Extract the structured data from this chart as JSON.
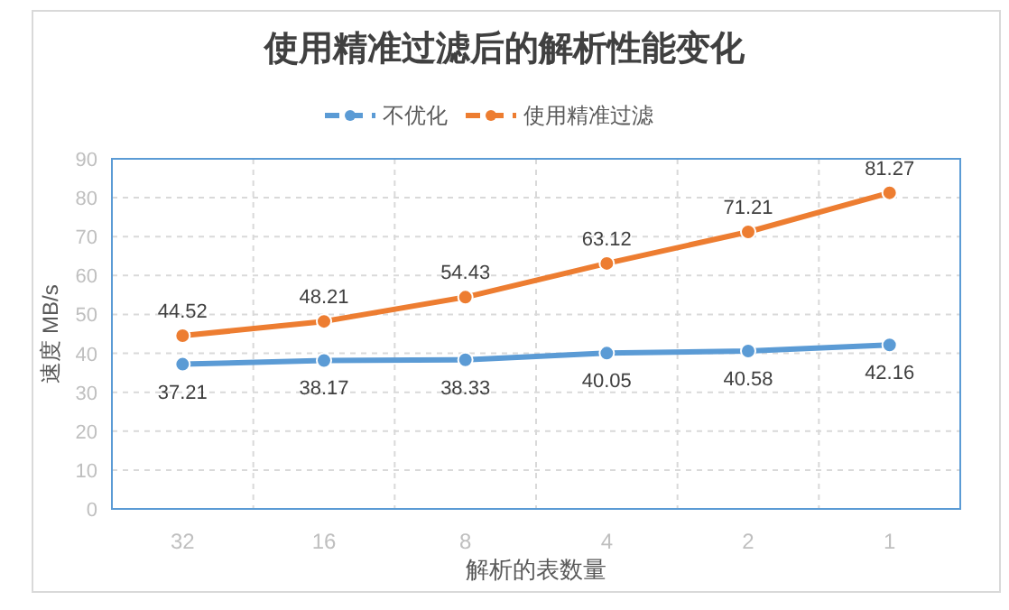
{
  "chart_data": {
    "type": "line",
    "title": "使用精准过滤后的解析性能变化",
    "xlabel": "解析的表数量",
    "ylabel": "速度 MB/s",
    "categories": [
      "32",
      "16",
      "8",
      "4",
      "2",
      "1"
    ],
    "series": [
      {
        "name": "不优化",
        "color": "#5b9bd5",
        "values": [
          37.21,
          38.17,
          38.33,
          40.05,
          40.58,
          42.16
        ]
      },
      {
        "name": "使用精准过滤",
        "color": "#ed7d31",
        "values": [
          44.52,
          48.21,
          54.43,
          63.12,
          71.21,
          81.27
        ]
      }
    ],
    "ylim": [
      0,
      90
    ],
    "yticks": [
      0,
      10,
      20,
      30,
      40,
      50,
      60,
      70,
      80,
      90
    ],
    "grid": true,
    "legend": "top",
    "data_labels": true,
    "marker": "circle",
    "line_style": "solid"
  }
}
